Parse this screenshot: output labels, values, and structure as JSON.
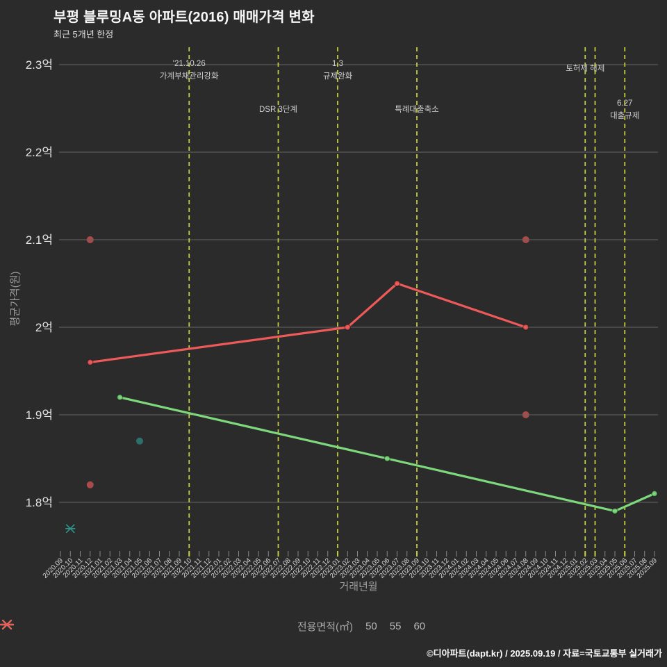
{
  "header": {
    "title": "부평 블루밍A동 아파트(2016) 매매가격 변화",
    "subtitle": "최근 5개년 한정"
  },
  "footer": {
    "credit": "©디아파트(dapt.kr) / 2025.09.19 / 자료=국토교통부 실거래가"
  },
  "colors": {
    "background": "#2b2b2b",
    "grid": "#646464",
    "event_line": "#c3cd3a",
    "tick": "#8a8a8a",
    "tick_label": "#d6d6d6",
    "y_label": "#e4e4e4",
    "annotation": "#cfcfcf"
  },
  "chart_data": {
    "type": "line",
    "title": "부평 블루밍A동 아파트(2016) 매매가격 변화",
    "subtitle": "최근 5개년 한정",
    "xlabel": "거래년월",
    "ylabel": "평균가격(원)",
    "grid": "horizontal",
    "ylim": [
      1.74,
      2.32
    ],
    "y_ticks": [
      {
        "value": 1.8,
        "label": "1.8억"
      },
      {
        "value": 1.9,
        "label": "1.9억"
      },
      {
        "value": 2.0,
        "label": "2억"
      },
      {
        "value": 2.1,
        "label": "2.1억"
      },
      {
        "value": 2.2,
        "label": "2.2억"
      },
      {
        "value": 2.3,
        "label": "2.3억"
      }
    ],
    "x": [
      "2020.09",
      "2020.10",
      "2020.11",
      "2020.12",
      "2021.01",
      "2021.02",
      "2021.03",
      "2021.04",
      "2021.05",
      "2021.06",
      "2021.07",
      "2021.08",
      "2021.09",
      "2021.10",
      "2021.11",
      "2021.12",
      "2022.01",
      "2022.02",
      "2022.03",
      "2022.04",
      "2022.05",
      "2022.06",
      "2022.07",
      "2022.08",
      "2022.09",
      "2022.10",
      "2022.11",
      "2022.12",
      "2023.01",
      "2023.02",
      "2023.03",
      "2023.04",
      "2023.05",
      "2023.06",
      "2023.07",
      "2023.08",
      "2023.09",
      "2023.10",
      "2023.11",
      "2023.12",
      "2024.01",
      "2024.02",
      "2024.03",
      "2024.04",
      "2024.05",
      "2024.06",
      "2024.07",
      "2024.08",
      "2024.09",
      "2024.10",
      "2024.11",
      "2024.12",
      "2025.01",
      "2025.02",
      "2025.03",
      "2025.04",
      "2025.05",
      "2025.06",
      "2025.07",
      "2025.08",
      "2025.09"
    ],
    "legend": {
      "title": "전용면적(㎡)",
      "position": "bottom"
    },
    "series": [
      {
        "name": "50",
        "color": "#2e948c",
        "unit": "억",
        "line": [
          {
            "x": "2020.10",
            "y": 1.77
          }
        ],
        "points": [
          {
            "x": "2021.05",
            "y": 1.87
          }
        ]
      },
      {
        "name": "55",
        "color": "#7dd97c",
        "unit": "억",
        "line": [
          {
            "x": "2021.03",
            "y": 1.92
          },
          {
            "x": "2023.06",
            "y": 1.85
          },
          {
            "x": "2025.05",
            "y": 1.79
          },
          {
            "x": "2025.09",
            "y": 1.81
          }
        ],
        "points": []
      },
      {
        "name": "60",
        "color": "#ee5a5a",
        "unit": "억",
        "line": [
          {
            "x": "2020.12",
            "y": 1.96
          },
          {
            "x": "2023.02",
            "y": 2.0
          },
          {
            "x": "2023.07",
            "y": 2.05
          },
          {
            "x": "2024.08",
            "y": 2.0
          }
        ],
        "points": [
          {
            "x": "2020.12",
            "y": 2.1
          },
          {
            "x": "2020.12",
            "y": 1.82
          },
          {
            "x": "2024.08",
            "y": 2.1
          },
          {
            "x": "2024.08",
            "y": 1.9
          }
        ]
      }
    ],
    "events": [
      {
        "x": "2021.10",
        "lines": [
          "'21.10.26",
          "가계부채관리강화"
        ],
        "row": "top"
      },
      {
        "x": "2022.07",
        "lines": [
          "DSR 3단계"
        ],
        "row": "mid"
      },
      {
        "x": "2023.01",
        "lines": [
          "1.3",
          "규제완화"
        ],
        "row": "top"
      },
      {
        "x": "2023.09",
        "lines": [
          "특례대출축소"
        ],
        "row": "mid"
      },
      {
        "x": "2025.02",
        "lines": [
          "토허제 해제"
        ],
        "row": "top"
      },
      {
        "x": "2025.03",
        "lines": [],
        "row": "top"
      },
      {
        "x": "2025.06",
        "lines": [
          "6.27",
          "대출규제"
        ],
        "row": "mid"
      }
    ]
  }
}
